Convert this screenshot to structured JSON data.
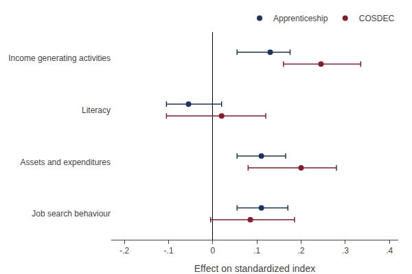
{
  "chart_data": {
    "type": "scatter",
    "orientation": "horizontal",
    "categories": [
      "Income generating activities",
      "Literacy",
      "Assets and expenditures",
      "Job search behaviour"
    ],
    "series": [
      {
        "name": "Apprenticeship",
        "color": "#1c3461",
        "values": [
          0.13,
          -0.055,
          0.11,
          0.11
        ],
        "ci_low": [
          0.055,
          -0.105,
          0.055,
          0.055
        ],
        "ci_high": [
          0.175,
          0.02,
          0.165,
          0.17
        ]
      },
      {
        "name": "COSDEC",
        "color": "#8b1a2e",
        "values": [
          0.245,
          0.02,
          0.2,
          0.085
        ],
        "ci_low": [
          0.16,
          -0.105,
          0.08,
          -0.005
        ],
        "ci_high": [
          0.335,
          0.12,
          0.28,
          0.185
        ]
      }
    ],
    "xlabel": "Effect on standardized index",
    "xlim": [
      -0.23,
      0.42
    ],
    "xticks": [
      {
        "value": -0.2,
        "label": "-.2"
      },
      {
        "value": -0.1,
        "label": "-.1"
      },
      0,
      {
        "value": 0.1,
        "label": ".1"
      },
      {
        "value": 0.2,
        "label": ".2"
      },
      {
        "value": 0.3,
        "label": ".3"
      },
      {
        "value": 0.4,
        "label": ".4"
      }
    ],
    "grid": false,
    "legend": "upper right",
    "marker": "circle"
  }
}
